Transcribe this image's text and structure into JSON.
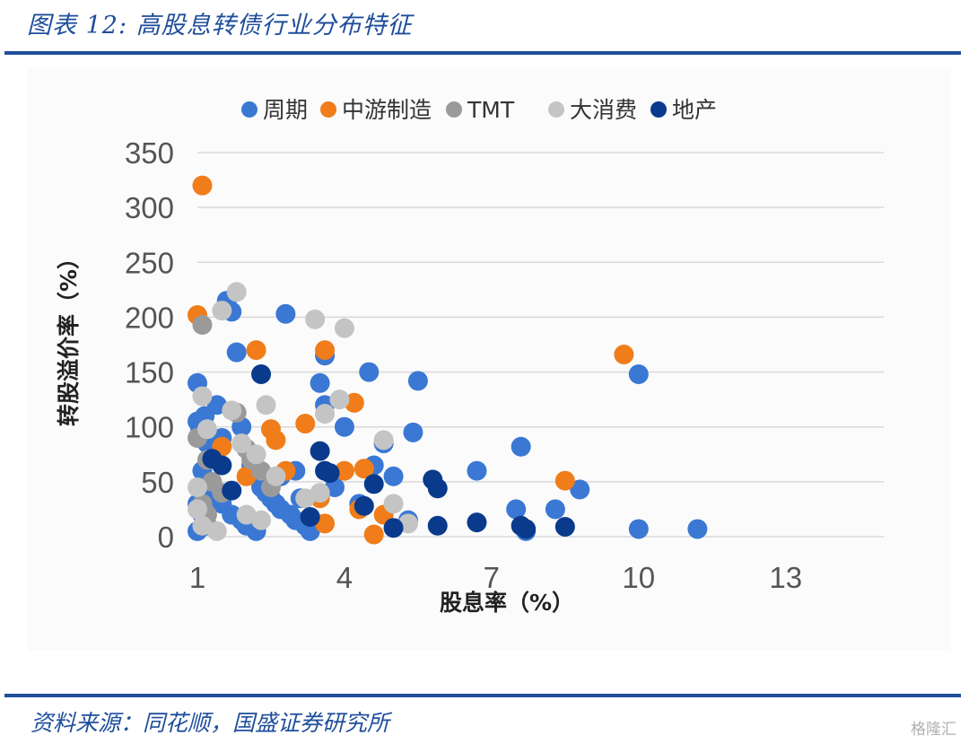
{
  "figure": {
    "title": "图表 12:  高股息转债行业分布特征",
    "source": "资料来源：同花顺，国盛证券研究所",
    "watermark": "格隆汇"
  },
  "chart_data": {
    "type": "scatter",
    "xlabel": "股息率（%）",
    "ylabel": "转股溢价率（%）",
    "xlim": [
      1,
      15
    ],
    "ylim": [
      0,
      350
    ],
    "xticks": [
      1,
      4,
      7,
      10,
      13
    ],
    "yticks": [
      0,
      50,
      100,
      150,
      200,
      250,
      300,
      350
    ],
    "grid": "horizontal",
    "legend": "top",
    "series": [
      {
        "name": "周期",
        "color": "#3a78d4",
        "points": [
          [
            1.0,
            140
          ],
          [
            1.0,
            105
          ],
          [
            1.05,
            100
          ],
          [
            1.1,
            95
          ],
          [
            1.15,
            110
          ],
          [
            1.2,
            85
          ],
          [
            1.3,
            75
          ],
          [
            1.4,
            120
          ],
          [
            1.5,
            90
          ],
          [
            1.6,
            215
          ],
          [
            1.7,
            205
          ],
          [
            1.8,
            168
          ],
          [
            1.9,
            100
          ],
          [
            2.0,
            80
          ],
          [
            2.1,
            65
          ],
          [
            2.2,
            55
          ],
          [
            2.3,
            45
          ],
          [
            2.4,
            40
          ],
          [
            2.5,
            35
          ],
          [
            2.6,
            30
          ],
          [
            2.7,
            25
          ],
          [
            2.8,
            203
          ],
          [
            2.9,
            20
          ],
          [
            3.0,
            15
          ],
          [
            3.2,
            10
          ],
          [
            3.3,
            5
          ],
          [
            3.5,
            140
          ],
          [
            3.6,
            120
          ],
          [
            3.6,
            165
          ],
          [
            3.8,
            45
          ],
          [
            4.0,
            100
          ],
          [
            4.3,
            30
          ],
          [
            4.5,
            150
          ],
          [
            4.6,
            65
          ],
          [
            4.8,
            85
          ],
          [
            5.0,
            55
          ],
          [
            5.3,
            15
          ],
          [
            5.4,
            95
          ],
          [
            5.5,
            142
          ],
          [
            6.7,
            60
          ],
          [
            7.5,
            25
          ],
          [
            7.6,
            82
          ],
          [
            7.7,
            5
          ],
          [
            8.3,
            25
          ],
          [
            8.8,
            43
          ],
          [
            10.0,
            148
          ],
          [
            10.0,
            7
          ],
          [
            11.2,
            7
          ],
          [
            1.1,
            60
          ],
          [
            1.2,
            50
          ],
          [
            1.3,
            40
          ],
          [
            1.5,
            30
          ],
          [
            1.7,
            20
          ],
          [
            1.9,
            15
          ],
          [
            2.0,
            10
          ],
          [
            2.2,
            5
          ],
          [
            2.5,
            50
          ],
          [
            2.7,
            55
          ],
          [
            3.0,
            60
          ],
          [
            3.1,
            35
          ],
          [
            1.0,
            30
          ],
          [
            1.1,
            20
          ],
          [
            1.2,
            10
          ],
          [
            1.0,
            5
          ]
        ]
      },
      {
        "name": "中游制造",
        "color": "#f07d1a",
        "points": [
          [
            1.1,
            320
          ],
          [
            1.0,
            202
          ],
          [
            2.2,
            170
          ],
          [
            3.6,
            170
          ],
          [
            2.5,
            98
          ],
          [
            2.6,
            88
          ],
          [
            3.2,
            103
          ],
          [
            4.2,
            122
          ],
          [
            4.3,
            25
          ],
          [
            4.4,
            62
          ],
          [
            4.0,
            60
          ],
          [
            3.5,
            35
          ],
          [
            3.6,
            12
          ],
          [
            4.6,
            2
          ],
          [
            4.8,
            20
          ],
          [
            8.5,
            51
          ],
          [
            9.7,
            166
          ],
          [
            1.5,
            82
          ],
          [
            2.0,
            55
          ],
          [
            2.8,
            60
          ]
        ]
      },
      {
        "name": "TMT",
        "color": "#9a9a9a",
        "points": [
          [
            1.1,
            193
          ],
          [
            1.0,
            90
          ],
          [
            1.2,
            70
          ],
          [
            1.3,
            50
          ],
          [
            1.5,
            40
          ],
          [
            1.8,
            113
          ],
          [
            2.0,
            80
          ],
          [
            2.1,
            70
          ],
          [
            2.3,
            60
          ],
          [
            2.5,
            45
          ],
          [
            1.1,
            30
          ],
          [
            1.2,
            20
          ]
        ]
      },
      {
        "name": "大消费",
        "color": "#c4c4c4",
        "points": [
          [
            1.8,
            223
          ],
          [
            1.5,
            206
          ],
          [
            3.4,
            198
          ],
          [
            4.0,
            190
          ],
          [
            1.1,
            128
          ],
          [
            1.7,
            115
          ],
          [
            2.4,
            120
          ],
          [
            3.6,
            112
          ],
          [
            3.9,
            125
          ],
          [
            4.8,
            88
          ],
          [
            5.0,
            30
          ],
          [
            5.3,
            12
          ],
          [
            1.2,
            98
          ],
          [
            1.9,
            85
          ],
          [
            2.2,
            75
          ],
          [
            2.6,
            55
          ],
          [
            3.2,
            35
          ],
          [
            3.5,
            40
          ],
          [
            1.0,
            45
          ],
          [
            1.0,
            25
          ],
          [
            1.1,
            10
          ],
          [
            1.4,
            5
          ],
          [
            2.3,
            15
          ],
          [
            2.0,
            20
          ]
        ]
      },
      {
        "name": "地产",
        "color": "#0a3a8c",
        "points": [
          [
            2.3,
            148
          ],
          [
            1.3,
            71
          ],
          [
            1.5,
            65
          ],
          [
            3.5,
            78
          ],
          [
            3.6,
            60
          ],
          [
            3.7,
            58
          ],
          [
            1.7,
            42
          ],
          [
            3.3,
            18
          ],
          [
            4.6,
            48
          ],
          [
            4.4,
            28
          ],
          [
            5.0,
            8
          ],
          [
            5.8,
            52
          ],
          [
            5.9,
            44
          ],
          [
            5.9,
            10
          ],
          [
            6.7,
            13
          ],
          [
            7.6,
            10
          ],
          [
            7.7,
            7
          ],
          [
            8.5,
            9
          ]
        ]
      }
    ]
  }
}
